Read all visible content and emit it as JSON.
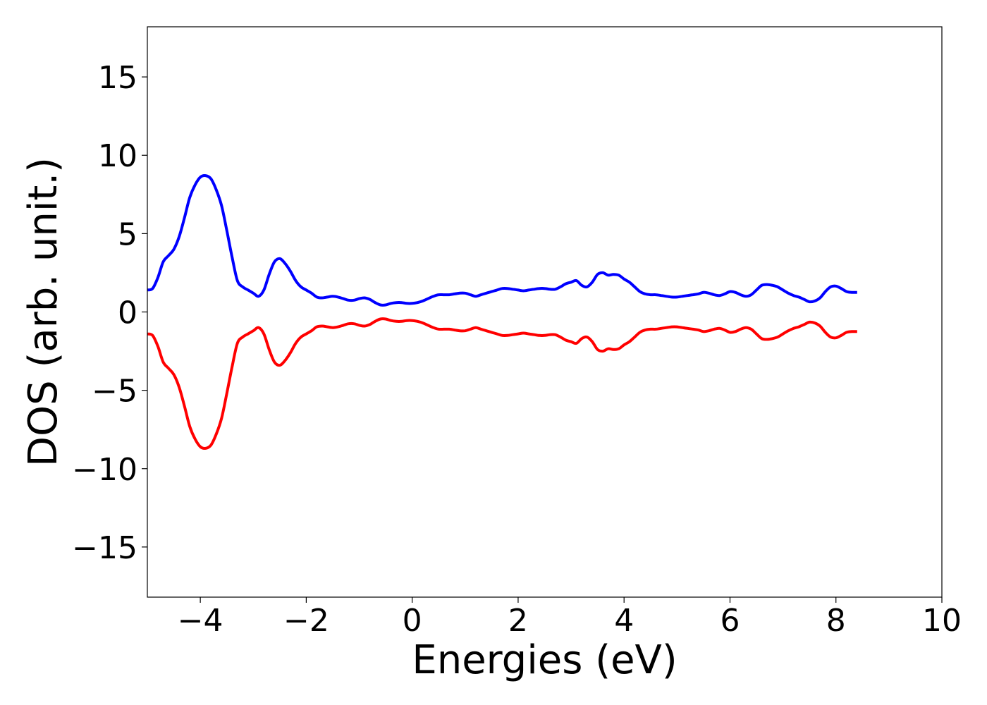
{
  "chart_data": {
    "type": "line",
    "title": "",
    "xlabel": "Energies (eV)",
    "ylabel": "DOS (arb. unit.)",
    "xlim": [
      -5,
      10
    ],
    "ylim": [
      -18.2,
      18.2
    ],
    "xticks": [
      -4,
      -2,
      0,
      2,
      4,
      6,
      8,
      10
    ],
    "xtick_labels": [
      "−4",
      "−2",
      "0",
      "2",
      "4",
      "6",
      "8",
      "10"
    ],
    "yticks": [
      -15,
      -10,
      -5,
      0,
      5,
      10,
      15
    ],
    "ytick_labels": [
      "−15",
      "−10",
      "−5",
      "0",
      "5",
      "10",
      "15"
    ],
    "grid": false,
    "legend": "none",
    "series": [
      {
        "color": "#0000ff",
        "points": [
          [
            -5.0,
            1.4
          ],
          [
            -4.9,
            1.5
          ],
          [
            -4.8,
            2.2
          ],
          [
            -4.7,
            3.2
          ],
          [
            -4.6,
            3.6
          ],
          [
            -4.5,
            4.0
          ],
          [
            -4.4,
            4.8
          ],
          [
            -4.3,
            6.0
          ],
          [
            -4.2,
            7.3
          ],
          [
            -4.1,
            8.1
          ],
          [
            -4.0,
            8.6
          ],
          [
            -3.9,
            8.7
          ],
          [
            -3.8,
            8.5
          ],
          [
            -3.7,
            7.8
          ],
          [
            -3.6,
            6.8
          ],
          [
            -3.5,
            5.2
          ],
          [
            -3.4,
            3.5
          ],
          [
            -3.3,
            2.0
          ],
          [
            -3.2,
            1.6
          ],
          [
            -3.1,
            1.4
          ],
          [
            -3.0,
            1.2
          ],
          [
            -2.9,
            1.0
          ],
          [
            -2.8,
            1.4
          ],
          [
            -2.7,
            2.4
          ],
          [
            -2.6,
            3.2
          ],
          [
            -2.5,
            3.4
          ],
          [
            -2.4,
            3.1
          ],
          [
            -2.3,
            2.6
          ],
          [
            -2.2,
            2.0
          ],
          [
            -2.1,
            1.6
          ],
          [
            -2.0,
            1.4
          ],
          [
            -1.9,
            1.2
          ],
          [
            -1.8,
            0.95
          ],
          [
            -1.7,
            0.9
          ],
          [
            -1.6,
            0.95
          ],
          [
            -1.5,
            1.0
          ],
          [
            -1.4,
            0.95
          ],
          [
            -1.3,
            0.85
          ],
          [
            -1.2,
            0.75
          ],
          [
            -1.1,
            0.75
          ],
          [
            -1.0,
            0.85
          ],
          [
            -0.9,
            0.9
          ],
          [
            -0.8,
            0.8
          ],
          [
            -0.7,
            0.6
          ],
          [
            -0.6,
            0.45
          ],
          [
            -0.5,
            0.45
          ],
          [
            -0.4,
            0.55
          ],
          [
            -0.3,
            0.6
          ],
          [
            -0.2,
            0.6
          ],
          [
            -0.1,
            0.55
          ],
          [
            0.0,
            0.55
          ],
          [
            0.1,
            0.6
          ],
          [
            0.2,
            0.7
          ],
          [
            0.3,
            0.85
          ],
          [
            0.4,
            1.0
          ],
          [
            0.5,
            1.1
          ],
          [
            0.6,
            1.1
          ],
          [
            0.7,
            1.1
          ],
          [
            0.8,
            1.15
          ],
          [
            0.9,
            1.2
          ],
          [
            1.0,
            1.2
          ],
          [
            1.1,
            1.1
          ],
          [
            1.2,
            1.0
          ],
          [
            1.3,
            1.1
          ],
          [
            1.4,
            1.2
          ],
          [
            1.5,
            1.3
          ],
          [
            1.6,
            1.4
          ],
          [
            1.7,
            1.5
          ],
          [
            1.8,
            1.5
          ],
          [
            1.9,
            1.45
          ],
          [
            2.0,
            1.4
          ],
          [
            2.1,
            1.35
          ],
          [
            2.2,
            1.4
          ],
          [
            2.3,
            1.45
          ],
          [
            2.4,
            1.5
          ],
          [
            2.5,
            1.5
          ],
          [
            2.6,
            1.45
          ],
          [
            2.7,
            1.45
          ],
          [
            2.8,
            1.6
          ],
          [
            2.9,
            1.8
          ],
          [
            3.0,
            1.9
          ],
          [
            3.1,
            2.0
          ],
          [
            3.2,
            1.7
          ],
          [
            3.3,
            1.6
          ],
          [
            3.4,
            1.9
          ],
          [
            3.5,
            2.4
          ],
          [
            3.6,
            2.5
          ],
          [
            3.7,
            2.35
          ],
          [
            3.8,
            2.4
          ],
          [
            3.9,
            2.35
          ],
          [
            4.0,
            2.1
          ],
          [
            4.1,
            1.9
          ],
          [
            4.2,
            1.6
          ],
          [
            4.3,
            1.3
          ],
          [
            4.4,
            1.15
          ],
          [
            4.5,
            1.1
          ],
          [
            4.6,
            1.1
          ],
          [
            4.7,
            1.05
          ],
          [
            4.8,
            1.0
          ],
          [
            4.9,
            0.95
          ],
          [
            5.0,
            0.95
          ],
          [
            5.1,
            1.0
          ],
          [
            5.2,
            1.05
          ],
          [
            5.3,
            1.1
          ],
          [
            5.4,
            1.15
          ],
          [
            5.5,
            1.25
          ],
          [
            5.6,
            1.2
          ],
          [
            5.7,
            1.1
          ],
          [
            5.8,
            1.05
          ],
          [
            5.9,
            1.15
          ],
          [
            6.0,
            1.3
          ],
          [
            6.1,
            1.25
          ],
          [
            6.2,
            1.1
          ],
          [
            6.3,
            1.0
          ],
          [
            6.4,
            1.1
          ],
          [
            6.5,
            1.4
          ],
          [
            6.6,
            1.7
          ],
          [
            6.7,
            1.75
          ],
          [
            6.8,
            1.7
          ],
          [
            6.9,
            1.6
          ],
          [
            7.0,
            1.4
          ],
          [
            7.1,
            1.2
          ],
          [
            7.2,
            1.05
          ],
          [
            7.3,
            0.95
          ],
          [
            7.4,
            0.8
          ],
          [
            7.5,
            0.65
          ],
          [
            7.6,
            0.7
          ],
          [
            7.7,
            0.9
          ],
          [
            7.8,
            1.3
          ],
          [
            7.9,
            1.6
          ],
          [
            8.0,
            1.65
          ],
          [
            8.1,
            1.5
          ],
          [
            8.2,
            1.3
          ],
          [
            8.3,
            1.25
          ],
          [
            8.4,
            1.25
          ]
        ]
      },
      {
        "color": "#ff0000",
        "points": [
          [
            -5.0,
            -1.4
          ],
          [
            -4.9,
            -1.5
          ],
          [
            -4.8,
            -2.2
          ],
          [
            -4.7,
            -3.2
          ],
          [
            -4.6,
            -3.6
          ],
          [
            -4.5,
            -4.0
          ],
          [
            -4.4,
            -4.8
          ],
          [
            -4.3,
            -6.0
          ],
          [
            -4.2,
            -7.3
          ],
          [
            -4.1,
            -8.1
          ],
          [
            -4.0,
            -8.6
          ],
          [
            -3.9,
            -8.7
          ],
          [
            -3.8,
            -8.5
          ],
          [
            -3.7,
            -7.8
          ],
          [
            -3.6,
            -6.8
          ],
          [
            -3.5,
            -5.2
          ],
          [
            -3.4,
            -3.5
          ],
          [
            -3.3,
            -2.0
          ],
          [
            -3.2,
            -1.6
          ],
          [
            -3.1,
            -1.4
          ],
          [
            -3.0,
            -1.2
          ],
          [
            -2.9,
            -1.0
          ],
          [
            -2.8,
            -1.4
          ],
          [
            -2.7,
            -2.4
          ],
          [
            -2.6,
            -3.2
          ],
          [
            -2.5,
            -3.4
          ],
          [
            -2.4,
            -3.1
          ],
          [
            -2.3,
            -2.6
          ],
          [
            -2.2,
            -2.0
          ],
          [
            -2.1,
            -1.6
          ],
          [
            -2.0,
            -1.4
          ],
          [
            -1.9,
            -1.2
          ],
          [
            -1.8,
            -0.95
          ],
          [
            -1.7,
            -0.9
          ],
          [
            -1.6,
            -0.95
          ],
          [
            -1.5,
            -1.0
          ],
          [
            -1.4,
            -0.95
          ],
          [
            -1.3,
            -0.85
          ],
          [
            -1.2,
            -0.75
          ],
          [
            -1.1,
            -0.75
          ],
          [
            -1.0,
            -0.85
          ],
          [
            -0.9,
            -0.9
          ],
          [
            -0.8,
            -0.8
          ],
          [
            -0.7,
            -0.6
          ],
          [
            -0.6,
            -0.45
          ],
          [
            -0.5,
            -0.45
          ],
          [
            -0.4,
            -0.55
          ],
          [
            -0.3,
            -0.6
          ],
          [
            -0.2,
            -0.6
          ],
          [
            -0.1,
            -0.55
          ],
          [
            0.0,
            -0.55
          ],
          [
            0.1,
            -0.6
          ],
          [
            0.2,
            -0.7
          ],
          [
            0.3,
            -0.85
          ],
          [
            0.4,
            -1.0
          ],
          [
            0.5,
            -1.1
          ],
          [
            0.6,
            -1.1
          ],
          [
            0.7,
            -1.1
          ],
          [
            0.8,
            -1.15
          ],
          [
            0.9,
            -1.2
          ],
          [
            1.0,
            -1.2
          ],
          [
            1.1,
            -1.1
          ],
          [
            1.2,
            -1.0
          ],
          [
            1.3,
            -1.1
          ],
          [
            1.4,
            -1.2
          ],
          [
            1.5,
            -1.3
          ],
          [
            1.6,
            -1.4
          ],
          [
            1.7,
            -1.5
          ],
          [
            1.8,
            -1.5
          ],
          [
            1.9,
            -1.45
          ],
          [
            2.0,
            -1.4
          ],
          [
            2.1,
            -1.35
          ],
          [
            2.2,
            -1.4
          ],
          [
            2.3,
            -1.45
          ],
          [
            2.4,
            -1.5
          ],
          [
            2.5,
            -1.5
          ],
          [
            2.6,
            -1.45
          ],
          [
            2.7,
            -1.45
          ],
          [
            2.8,
            -1.6
          ],
          [
            2.9,
            -1.8
          ],
          [
            3.0,
            -1.9
          ],
          [
            3.1,
            -2.0
          ],
          [
            3.2,
            -1.7
          ],
          [
            3.3,
            -1.6
          ],
          [
            3.4,
            -1.9
          ],
          [
            3.5,
            -2.4
          ],
          [
            3.6,
            -2.5
          ],
          [
            3.7,
            -2.35
          ],
          [
            3.8,
            -2.4
          ],
          [
            3.9,
            -2.35
          ],
          [
            4.0,
            -2.1
          ],
          [
            4.1,
            -1.9
          ],
          [
            4.2,
            -1.6
          ],
          [
            4.3,
            -1.3
          ],
          [
            4.4,
            -1.15
          ],
          [
            4.5,
            -1.1
          ],
          [
            4.6,
            -1.1
          ],
          [
            4.7,
            -1.05
          ],
          [
            4.8,
            -1.0
          ],
          [
            4.9,
            -0.95
          ],
          [
            5.0,
            -0.95
          ],
          [
            5.1,
            -1.0
          ],
          [
            5.2,
            -1.05
          ],
          [
            5.3,
            -1.1
          ],
          [
            5.4,
            -1.15
          ],
          [
            5.5,
            -1.25
          ],
          [
            5.6,
            -1.2
          ],
          [
            5.7,
            -1.1
          ],
          [
            5.8,
            -1.05
          ],
          [
            5.9,
            -1.15
          ],
          [
            6.0,
            -1.3
          ],
          [
            6.1,
            -1.25
          ],
          [
            6.2,
            -1.1
          ],
          [
            6.3,
            -1.0
          ],
          [
            6.4,
            -1.1
          ],
          [
            6.5,
            -1.4
          ],
          [
            6.6,
            -1.7
          ],
          [
            6.7,
            -1.75
          ],
          [
            6.8,
            -1.7
          ],
          [
            6.9,
            -1.6
          ],
          [
            7.0,
            -1.4
          ],
          [
            7.1,
            -1.2
          ],
          [
            7.2,
            -1.05
          ],
          [
            7.3,
            -0.95
          ],
          [
            7.4,
            -0.8
          ],
          [
            7.5,
            -0.65
          ],
          [
            7.6,
            -0.7
          ],
          [
            7.7,
            -0.9
          ],
          [
            7.8,
            -1.3
          ],
          [
            7.9,
            -1.6
          ],
          [
            8.0,
            -1.65
          ],
          [
            8.1,
            -1.5
          ],
          [
            8.2,
            -1.3
          ],
          [
            8.3,
            -1.25
          ],
          [
            8.4,
            -1.25
          ]
        ]
      }
    ]
  }
}
